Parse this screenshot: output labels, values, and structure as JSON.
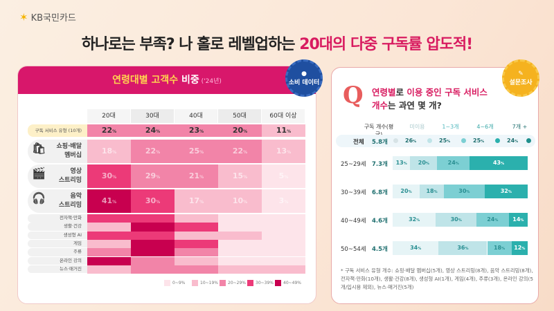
{
  "logo": {
    "brand": "KB국민카드"
  },
  "title": {
    "part1": "하나로는 부족? 나 홀로 레벨업하는 ",
    "highlight": "20대의 다중 구독률 압도적!"
  },
  "left": {
    "header": {
      "a": "연령대별 고객수 ",
      "b": "비중",
      "c": " ('24년)"
    },
    "badge": "소비 데이터",
    "columns": [
      "20대",
      "30대",
      "40대",
      "50대",
      "60대 이상"
    ],
    "total_row": {
      "label": "구독 서비스 유형 (10개)",
      "values": [
        22,
        24,
        23,
        20,
        11
      ]
    },
    "main_rows": [
      {
        "label1": "쇼핑·배달",
        "label2": "멤버십",
        "icon": "shopping-bag-icon",
        "values": [
          18,
          22,
          25,
          22,
          13
        ]
      },
      {
        "label1": "영상",
        "label2": "스트리밍",
        "icon": "clapperboard-icon",
        "values": [
          30,
          29,
          21,
          15,
          5
        ]
      },
      {
        "label1": "음악",
        "label2": "스트리밍",
        "icon": "headphones-icon",
        "values": [
          41,
          30,
          17,
          10,
          3
        ]
      }
    ],
    "minor_rows": [
      {
        "label": "전자책·만화",
        "levels": [
          3,
          3,
          1,
          0,
          0
        ]
      },
      {
        "label": "생활·건강",
        "levels": [
          1,
          4,
          3,
          0,
          0
        ]
      },
      {
        "label": "생성형 AI",
        "levels": [
          3,
          3,
          1,
          1,
          0
        ]
      },
      {
        "label": "게임",
        "levels": [
          1,
          4,
          3,
          0,
          0
        ]
      },
      {
        "label": "주류",
        "levels": [
          2,
          4,
          2,
          0,
          0
        ]
      },
      {
        "label": "온라인 강의",
        "levels": [
          4,
          2,
          1,
          0,
          0
        ]
      },
      {
        "label": "뉴스·매거진",
        "levels": [
          1,
          2,
          2,
          1,
          1
        ]
      }
    ],
    "legend": [
      "0~9%",
      "10~19%",
      "20~29%",
      "30~39%",
      "40~49%"
    ],
    "colors": [
      "#fde4ea",
      "#f9bccd",
      "#f284a8",
      "#ec3a78",
      "#c8004f"
    ],
    "pct": "%"
  },
  "right": {
    "badge": "설문조사",
    "q": "Q",
    "question": {
      "p1": "연령별",
      "t1": "로 ",
      "p2": "이용 중인 구독 서비스",
      "p3": "개수",
      "t2": "는 과연 몇 개?"
    },
    "headers": [
      "구독 개수(평균)",
      "미이용",
      "1~3개",
      "4~6개",
      "7개 +"
    ],
    "total": {
      "label": "전체",
      "avg": "5.8개",
      "values": [
        26,
        25,
        25,
        24
      ]
    },
    "rows": [
      {
        "label": "25~29세",
        "avg": "7.3개",
        "values": [
          13,
          20,
          24,
          43
        ]
      },
      {
        "label": "30~39세",
        "avg": "6.8개",
        "values": [
          20,
          18,
          30,
          32
        ]
      },
      {
        "label": "40~49세",
        "avg": "4.6개",
        "values": [
          32,
          30,
          24,
          14
        ]
      },
      {
        "label": "50~54세",
        "avg": "4.5개",
        "values": [
          34,
          36,
          18,
          12
        ]
      }
    ],
    "colors": [
      "#e6f4f6",
      "#bfe4e8",
      "#7ccfd3",
      "#2bb0ad"
    ],
    "note": "* 구독 서비스 유형 개수: 쇼핑·배달 멤버십(5개), 영상 스트리밍(8개), 음악 스트리밍(8개), 전자책·만화(10개), 생활·건강(8개), 생성형 AI(1개), 게임(4개), 주류(3개), 온라인 강의(5개/입시용 제외), 뉴스·매거진(5개)"
  }
}
